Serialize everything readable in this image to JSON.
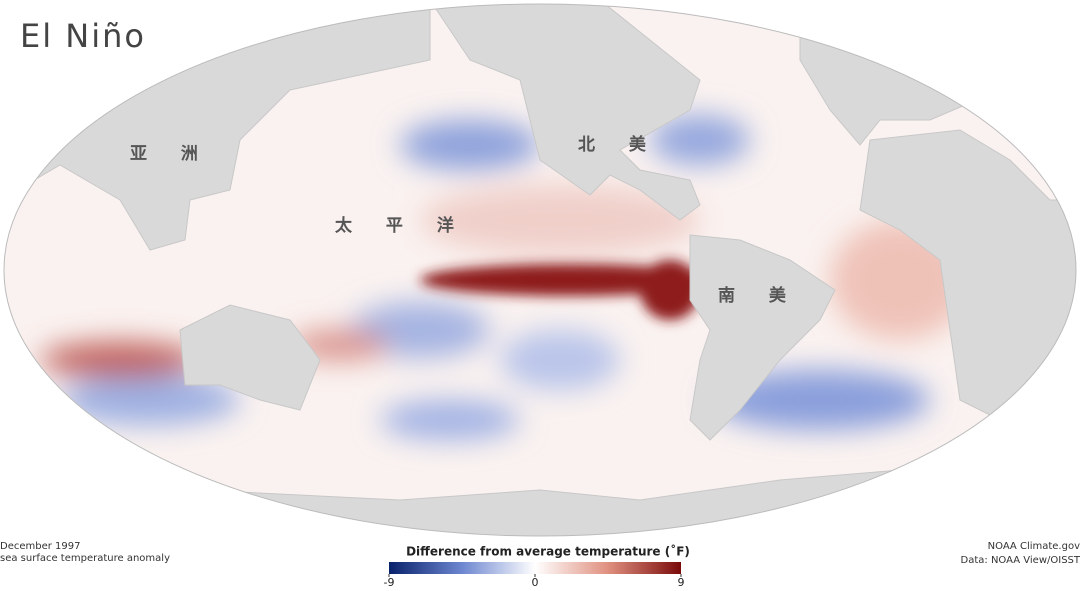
{
  "title": "El Niño",
  "map_labels": [
    "亚 洲",
    "太 平 洋",
    "北 美",
    "南 美"
  ],
  "footer": {
    "left": [
      "December 1997",
      "sea surface temperature anomaly"
    ],
    "right": [
      "NOAA Climate.gov",
      "Data: NOAA View/OISST"
    ]
  },
  "legend": {
    "title": "Difference from average temperature (˚F)",
    "range": [
      -9,
      9
    ],
    "ticks": [
      -9,
      0,
      9
    ]
  }
}
